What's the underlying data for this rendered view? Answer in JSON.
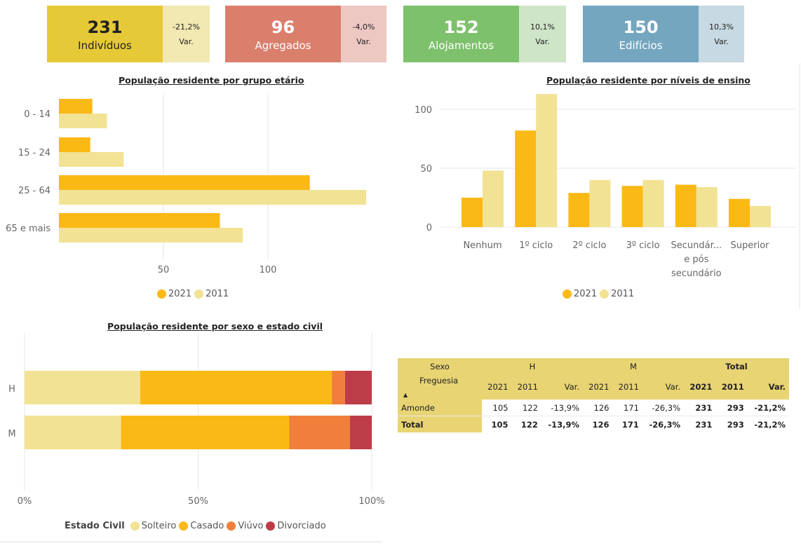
{
  "kpis": [
    {
      "value": "231",
      "label": "Indivíduos",
      "var": "-21,2%",
      "var_label": "Var.",
      "color": "#e6c936",
      "var_color": "#f1e8b2",
      "text_color": "#222222"
    },
    {
      "value": "96",
      "label": "Agregados",
      "var": "-4,0%",
      "var_label": "Var.",
      "color": "#db7f6d",
      "var_color": "#edc8c2",
      "text_color": "#ffffff"
    },
    {
      "value": "152",
      "label": "Alojamentos",
      "var": "10,1%",
      "var_label": "Var.",
      "color": "#7ec16d",
      "var_color": "#cfe5c8",
      "text_color": "#ffffff"
    },
    {
      "value": "150",
      "label": "Edifícios",
      "var": "10,3%",
      "var_label": "Var.",
      "color": "#74a6bf",
      "var_color": "#c7d9e2",
      "text_color": "#ffffff"
    }
  ],
  "colors": {
    "y2021": "#fbb915",
    "y2011": "#f2e294",
    "solteiro": "#f2e294",
    "casado": "#fbb915",
    "viuvo": "#f07f3c",
    "divorciado": "#bc3c48"
  },
  "chart_data": [
    {
      "type": "bar",
      "orientation": "horizontal",
      "title": "População residente por grupo etário",
      "categories": [
        "0 - 14",
        "15 - 24",
        "25 - 64",
        "65 e mais"
      ],
      "series": [
        {
          "name": "2021",
          "values": [
            16,
            15,
            120,
            77
          ]
        },
        {
          "name": "2011",
          "values": [
            23,
            31,
            147,
            88
          ]
        }
      ],
      "xlim": [
        0,
        150
      ],
      "ticks": [
        "50",
        "100"
      ],
      "legend": "bottom-center"
    },
    {
      "type": "bar",
      "title": "População residente por níveis de ensino",
      "categories": [
        "Nenhum",
        "1º ciclo",
        "2º ciclo",
        "3º ciclo",
        "Secundár... e pós secundário",
        "Superior"
      ],
      "series": [
        {
          "name": "2021",
          "values": [
            25,
            82,
            29,
            35,
            36,
            24
          ]
        },
        {
          "name": "2011",
          "values": [
            48,
            113,
            40,
            40,
            34,
            18
          ]
        }
      ],
      "ylim": [
        0,
        120
      ],
      "ticks": [
        "0",
        "50",
        "100"
      ],
      "legend": "bottom-center"
    },
    {
      "type": "bar",
      "orientation": "horizontal",
      "stacked": "100%",
      "title": "População residente por sexo e estado civil",
      "categories": [
        "H",
        "M"
      ],
      "series": [
        {
          "name": "Solteiro",
          "values": [
            33.3,
            27.8
          ]
        },
        {
          "name": "Casado",
          "values": [
            55.2,
            48.4
          ]
        },
        {
          "name": "Viúvo",
          "values": [
            3.8,
            17.5
          ]
        },
        {
          "name": "Divorciado",
          "values": [
            7.7,
            6.3
          ]
        }
      ],
      "ticks": [
        "0%",
        "50%",
        "100%"
      ],
      "legend_title": "Estado Civil",
      "legend": "bottom-left"
    }
  ],
  "table": {
    "sexo_label": "Sexo",
    "freguesia_label": "Freguesia",
    "groups": [
      "H",
      "M",
      "Total"
    ],
    "subheaders": [
      "2021",
      "2011",
      "Var.",
      "2021",
      "2011",
      "Var.",
      "2021",
      "2011",
      "Var."
    ],
    "rows": [
      {
        "name": "Amonde",
        "values": [
          "105",
          "122",
          "-13,9%",
          "126",
          "171",
          "-26,3%",
          "231",
          "293",
          "-21,2%"
        ]
      },
      {
        "name": "Total",
        "values": [
          "105",
          "122",
          "-13,9%",
          "126",
          "171",
          "-26,3%",
          "231",
          "293",
          "-21,2%"
        ]
      }
    ]
  }
}
